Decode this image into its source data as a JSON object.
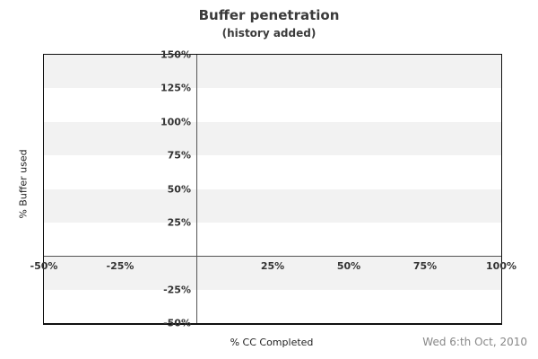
{
  "chart": {
    "title": "Buffer penetration",
    "subtitle": "(history added)",
    "xlabel": "% CC Completed",
    "ylabel": "% Buffer used",
    "date": "Wed 6:th Oct, 2010"
  },
  "chart_data": {
    "type": "line",
    "title": "Buffer penetration",
    "subtitle": "(history added)",
    "xlabel": "% CC Completed",
    "ylabel": "% Buffer used",
    "date_stamp": "Wed 6:th Oct, 2010",
    "xlim": [
      -50,
      100
    ],
    "ylim": [
      -50,
      150
    ],
    "x_ticks": [
      {
        "value": -50,
        "label": "-50%"
      },
      {
        "value": -25,
        "label": "-25%"
      },
      {
        "value": 25,
        "label": "25%"
      },
      {
        "value": 50,
        "label": "50%"
      },
      {
        "value": 75,
        "label": "75%"
      },
      {
        "value": 100,
        "label": "100%"
      }
    ],
    "y_ticks": [
      {
        "value": 150,
        "label": "150%"
      },
      {
        "value": 125,
        "label": "125%"
      },
      {
        "value": 100,
        "label": "100%"
      },
      {
        "value": 75,
        "label": "75%"
      },
      {
        "value": 50,
        "label": "50%"
      },
      {
        "value": 25,
        "label": "25%"
      },
      {
        "value": -25,
        "label": "-25%"
      },
      {
        "value": -50,
        "label": "-50%"
      }
    ],
    "band_step": 25,
    "first_band_gray": true,
    "series": [],
    "grid": "alternating horizontal bands",
    "legend": "none",
    "colors": {
      "band": "#f2f2f2",
      "zero_axis_line": "#555555",
      "plot_border": "#111111",
      "tick_text": "#333333",
      "title_text": "#3a3a3a",
      "date_text": "#888888"
    }
  }
}
